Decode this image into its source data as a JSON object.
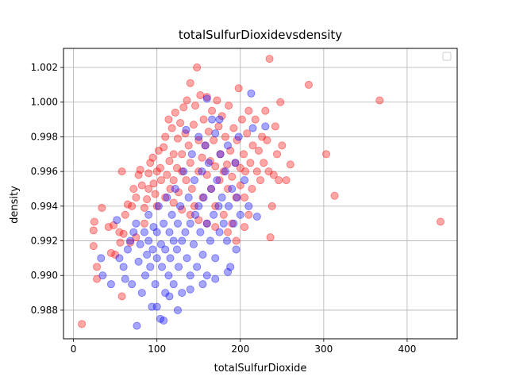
{
  "chart_data": {
    "type": "scatter",
    "title": "totalSulfurDioxidevsdensity",
    "xlabel": "totalSulfurDioxide",
    "ylabel": "density",
    "xlim": [
      -12,
      460
    ],
    "ylim": [
      0.98635,
      1.0031
    ],
    "xticks": [
      0,
      100,
      200,
      300,
      400
    ],
    "yticks": [
      0.988,
      0.99,
      0.992,
      0.994,
      0.996,
      0.998,
      1.0,
      1.002
    ],
    "ytick_labels": [
      "0.988",
      "0.990",
      "0.992",
      "0.994",
      "0.996",
      "0.998",
      "1.000",
      "1.002"
    ],
    "grid": true,
    "legend": "top-right (empty)",
    "series": [
      {
        "color": "#ff0000",
        "alpha": 0.35,
        "points": [
          [
            10,
            0.9872
          ],
          [
            24,
            0.9917
          ],
          [
            24,
            0.9926
          ],
          [
            25,
            0.9931
          ],
          [
            28,
            0.9905
          ],
          [
            28,
            0.9898
          ],
          [
            34,
            0.9939
          ],
          [
            42,
            0.9928
          ],
          [
            45,
            0.9913
          ],
          [
            48,
            0.9929
          ],
          [
            50,
            0.9912
          ],
          [
            55,
            0.9925
          ],
          [
            56,
            0.9919
          ],
          [
            58,
            0.996
          ],
          [
            58,
            0.9888
          ],
          [
            60,
            0.9924
          ],
          [
            62,
            0.9935
          ],
          [
            65,
            0.9941
          ],
          [
            68,
            0.9919
          ],
          [
            70,
            0.994
          ],
          [
            72,
            0.995
          ],
          [
            75,
            0.9945
          ],
          [
            75,
            0.9922
          ],
          [
            78,
            0.9958
          ],
          [
            80,
            0.9961
          ],
          [
            82,
            0.9952
          ],
          [
            85,
            0.9939
          ],
          [
            85,
            0.993
          ],
          [
            88,
            0.9944
          ],
          [
            90,
            0.995
          ],
          [
            90,
            0.9959
          ],
          [
            92,
            0.9965
          ],
          [
            95,
            0.9968
          ],
          [
            96,
            0.9953
          ],
          [
            98,
            0.9947
          ],
          [
            100,
            0.996
          ],
          [
            100,
            0.994
          ],
          [
            102,
            0.9972
          ],
          [
            104,
            0.9962
          ],
          [
            105,
            0.9955
          ],
          [
            108,
            0.9974
          ],
          [
            110,
            0.998
          ],
          [
            110,
            0.9945
          ],
          [
            112,
            0.9958
          ],
          [
            114,
            0.999
          ],
          [
            115,
            0.9966
          ],
          [
            116,
            0.995
          ],
          [
            118,
            0.9985
          ],
          [
            120,
            0.997
          ],
          [
            120,
            0.9955
          ],
          [
            122,
            0.9994
          ],
          [
            124,
            0.9962
          ],
          [
            125,
            0.9979
          ],
          [
            126,
            0.9948
          ],
          [
            128,
            0.9988
          ],
          [
            130,
            0.997
          ],
          [
            130,
            0.996
          ],
          [
            132,
            0.9997
          ],
          [
            134,
            0.9982
          ],
          [
            135,
            0.9955
          ],
          [
            136,
            1.0001
          ],
          [
            138,
            0.9975
          ],
          [
            140,
            1.0011
          ],
          [
            140,
            0.9965
          ],
          [
            142,
            0.995
          ],
          [
            144,
            0.9987
          ],
          [
            145,
            0.994
          ],
          [
            146,
            0.9998
          ],
          [
            148,
            1.002
          ],
          [
            150,
            0.9978
          ],
          [
            150,
            0.996
          ],
          [
            152,
            1.0004
          ],
          [
            154,
            0.9968
          ],
          [
            155,
            0.9945
          ],
          [
            156,
            0.999
          ],
          [
            158,
            0.9975
          ],
          [
            160,
            1.0003
          ],
          [
            160,
            0.9958
          ],
          [
            162,
            0.9983
          ],
          [
            164,
            0.9966
          ],
          [
            165,
            0.995
          ],
          [
            166,
            0.9995
          ],
          [
            168,
            0.9978
          ],
          [
            170,
            0.9963
          ],
          [
            170,
            0.994
          ],
          [
            172,
            1.0001
          ],
          [
            174,
            0.9986
          ],
          [
            175,
            0.9955
          ],
          [
            176,
            0.997
          ],
          [
            178,
            0.9992
          ],
          [
            180,
            0.996
          ],
          [
            180,
            0.9935
          ],
          [
            182,
            0.998
          ],
          [
            184,
            0.9964
          ],
          [
            185,
            0.995
          ],
          [
            186,
            0.9998
          ],
          [
            188,
            0.9972
          ],
          [
            190,
            0.9957
          ],
          [
            190,
            0.993
          ],
          [
            192,
            0.9985
          ],
          [
            194,
            0.9965
          ],
          [
            195,
            0.9945
          ],
          [
            196,
            0.9978
          ],
          [
            198,
            1.0008
          ],
          [
            200,
            0.9962
          ],
          [
            200,
            0.9952
          ],
          [
            202,
            0.999
          ],
          [
            204,
            0.997
          ],
          [
            205,
            0.9945
          ],
          [
            206,
            0.996
          ],
          [
            208,
            0.9982
          ],
          [
            210,
            0.9995
          ],
          [
            212,
            0.9965
          ],
          [
            214,
            0.995
          ],
          [
            215,
            0.9975
          ],
          [
            218,
            0.999
          ],
          [
            220,
            0.996
          ],
          [
            222,
            0.9972
          ],
          [
            224,
            0.9955
          ],
          [
            226,
            0.998
          ],
          [
            228,
            0.9965
          ],
          [
            230,
            0.9995
          ],
          [
            232,
            0.9978
          ],
          [
            234,
            0.996
          ],
          [
            235,
            1.0025
          ],
          [
            236,
            0.9922
          ],
          [
            238,
            0.994
          ],
          [
            240,
            0.9958
          ],
          [
            242,
            0.9986
          ],
          [
            244,
            0.997
          ],
          [
            246,
            0.9955
          ],
          [
            248,
            1.0
          ],
          [
            250,
            0.9975
          ],
          [
            255,
            0.9955
          ],
          [
            260,
            0.9964
          ],
          [
            282,
            1.001
          ],
          [
            303,
            0.997
          ],
          [
            313,
            0.9946
          ],
          [
            367,
            1.0001
          ],
          [
            440,
            0.9931
          ],
          [
            210,
            0.9935
          ],
          [
            205,
            0.9928
          ],
          [
            195,
            0.992
          ],
          [
            185,
            0.9925
          ],
          [
            170,
            0.9928
          ],
          [
            160,
            0.993
          ],
          [
            150,
            0.9932
          ],
          [
            140,
            0.9935
          ],
          [
            130,
            0.9938
          ],
          [
            120,
            0.9942
          ]
        ]
      },
      {
        "color": "#0000ff",
        "alpha": 0.35,
        "points": [
          [
            33,
            0.991
          ],
          [
            35,
            0.99
          ],
          [
            45,
            0.9895
          ],
          [
            52,
            0.9932
          ],
          [
            55,
            0.991
          ],
          [
            60,
            0.9905
          ],
          [
            62,
            0.9898
          ],
          [
            65,
            0.9915
          ],
          [
            68,
            0.992
          ],
          [
            70,
            0.9895
          ],
          [
            72,
            0.9925
          ],
          [
            75,
            0.993
          ],
          [
            76,
            0.9871
          ],
          [
            78,
            0.9908
          ],
          [
            80,
            0.9918
          ],
          [
            82,
            0.989
          ],
          [
            85,
            0.9925
          ],
          [
            86,
            0.99
          ],
          [
            88,
            0.9912
          ],
          [
            90,
            0.9935
          ],
          [
            90,
            0.992
          ],
          [
            92,
            0.9905
          ],
          [
            94,
            0.9882
          ],
          [
            95,
            0.9915
          ],
          [
            96,
            0.9928
          ],
          [
            98,
            0.9895
          ],
          [
            100,
            0.991
          ],
          [
            100,
            0.9925
          ],
          [
            102,
            0.994
          ],
          [
            104,
            0.9875
          ],
          [
            105,
            0.9918
          ],
          [
            106,
            0.9905
          ],
          [
            108,
            0.993
          ],
          [
            110,
            0.989
          ],
          [
            110,
            0.9915
          ],
          [
            112,
            0.9945
          ],
          [
            114,
            0.99
          ],
          [
            115,
            0.9925
          ],
          [
            116,
            0.991
          ],
          [
            118,
            0.9935
          ],
          [
            120,
            0.992
          ],
          [
            120,
            0.9895
          ],
          [
            122,
            0.995
          ],
          [
            124,
            0.9915
          ],
          [
            125,
            0.993
          ],
          [
            126,
            0.9905
          ],
          [
            128,
            0.994
          ],
          [
            130,
            0.992
          ],
          [
            130,
            0.989
          ],
          [
            132,
            0.996
          ],
          [
            134,
            0.9925
          ],
          [
            135,
            0.9984
          ],
          [
            136,
            0.991
          ],
          [
            138,
            0.9945
          ],
          [
            140,
            0.993
          ],
          [
            140,
            0.99
          ],
          [
            142,
            0.997
          ],
          [
            144,
            0.9918
          ],
          [
            145,
            0.9955
          ],
          [
            146,
            0.9935
          ],
          [
            148,
            0.9905
          ],
          [
            150,
            0.994
          ],
          [
            150,
            0.998
          ],
          [
            152,
            0.9925
          ],
          [
            154,
            0.996
          ],
          [
            155,
            0.9912
          ],
          [
            156,
            0.9945
          ],
          [
            158,
            0.9975
          ],
          [
            160,
            0.993
          ],
          [
            160,
            0.99
          ],
          [
            162,
            0.9965
          ],
          [
            164,
            0.992
          ],
          [
            165,
            0.995
          ],
          [
            166,
            0.999
          ],
          [
            168,
            0.9935
          ],
          [
            170,
            0.9982
          ],
          [
            170,
            0.991
          ],
          [
            172,
            0.9955
          ],
          [
            174,
            0.994
          ],
          [
            175,
            0.9925
          ],
          [
            176,
            0.997
          ],
          [
            178,
            0.9945
          ],
          [
            180,
            0.993
          ],
          [
            182,
            0.996
          ],
          [
            184,
            0.992
          ],
          [
            185,
            0.9975
          ],
          [
            186,
            0.994
          ],
          [
            188,
            0.9905
          ],
          [
            190,
            0.995
          ],
          [
            192,
            0.993
          ],
          [
            194,
            0.9965
          ],
          [
            195,
            0.9915
          ],
          [
            196,
            0.9945
          ],
          [
            198,
            0.998
          ],
          [
            200,
            0.9935
          ],
          [
            205,
            0.9955
          ],
          [
            210,
            0.994
          ],
          [
            213,
            1.0005
          ],
          [
            215,
            0.9985
          ],
          [
            220,
            0.9934
          ],
          [
            230,
            0.9986
          ],
          [
            108,
            0.9874
          ],
          [
            100,
            0.9882
          ],
          [
            115,
            0.9888
          ],
          [
            125,
            0.988
          ],
          [
            140,
            0.9892
          ],
          [
            155,
            0.9895
          ],
          [
            170,
            0.9898
          ],
          [
            185,
            0.9902
          ],
          [
            175,
            0.999
          ],
          [
            160,
            1.0002
          ]
        ]
      }
    ]
  }
}
